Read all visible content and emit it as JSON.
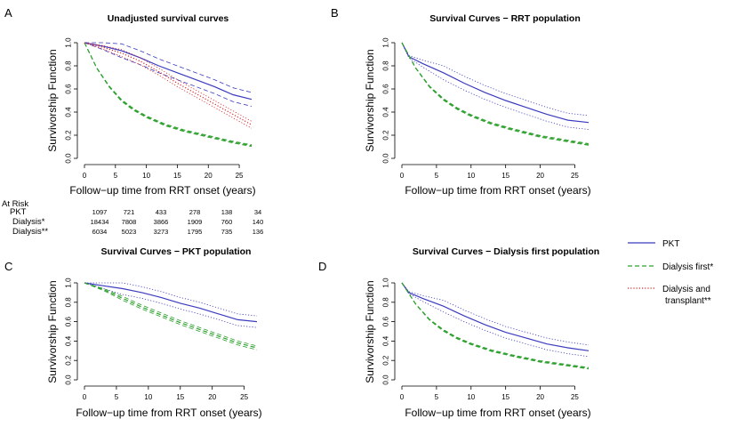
{
  "legend": {
    "items": [
      {
        "label": "PKT",
        "color": "#3b3bbf",
        "dash": "solid"
      },
      {
        "label": "Dialysis first*",
        "color": "#2ca02c",
        "dash": "dashed"
      },
      {
        "label": "Dialysis and",
        "label2": "transplant**",
        "color": "#d62728",
        "dash": "dotted"
      }
    ]
  },
  "at_risk": {
    "header": "At Risk",
    "rows": [
      {
        "label": "PKT",
        "values": [
          "1097",
          "721",
          "433",
          "278",
          "138",
          "34"
        ]
      },
      {
        "label": "Dialysis*",
        "values": [
          "18434",
          "7808",
          "3866",
          "1909",
          "760",
          "140"
        ]
      },
      {
        "label": "Dialysis**",
        "values": [
          "6034",
          "5023",
          "3273",
          "1795",
          "735",
          "136"
        ]
      }
    ]
  },
  "chart_data": [
    {
      "panel": "A",
      "type": "line",
      "title": "Unadjusted survival curves",
      "xlabel": "Follow−up time from RRT onset (years)",
      "ylabel": "Survivorship Function",
      "xlim": [
        0,
        27
      ],
      "ylim": [
        0,
        1
      ],
      "xticks": [
        "0",
        "5",
        "10",
        "15",
        "20",
        "25"
      ],
      "yticks": [
        "0.0",
        "0.2",
        "0.4",
        "0.6",
        "0.8",
        "1.0"
      ],
      "series": [
        {
          "name": "PKT",
          "color": "#3b3bbf",
          "ci_dash": "dashed",
          "ci": 0.06,
          "x": [
            0,
            3,
            6,
            9,
            12,
            15,
            18,
            21,
            24,
            27
          ],
          "y": [
            1.0,
            0.97,
            0.93,
            0.87,
            0.8,
            0.74,
            0.68,
            0.62,
            0.55,
            0.51
          ]
        },
        {
          "name": "Dialysis first*",
          "color": "#2ca02c",
          "ci_dash": "dashed",
          "ci": 0.008,
          "x": [
            0,
            2,
            4,
            6,
            8,
            10,
            13,
            16,
            20,
            24,
            27
          ],
          "y": [
            1.0,
            0.78,
            0.62,
            0.5,
            0.42,
            0.36,
            0.29,
            0.24,
            0.19,
            0.14,
            0.11
          ]
        },
        {
          "name": "Dialysis and transplant**",
          "color": "#d62728",
          "ci_dash": "dotted",
          "ci": 0.03,
          "x": [
            0,
            3,
            6,
            9,
            12,
            15,
            18,
            21,
            24,
            27
          ],
          "y": [
            1.0,
            0.96,
            0.91,
            0.84,
            0.75,
            0.65,
            0.56,
            0.47,
            0.38,
            0.29
          ]
        }
      ]
    },
    {
      "panel": "B",
      "type": "line",
      "title": "Survival Curves − RRT population",
      "xlabel": "Follow−up time from RRT onset (years)",
      "ylabel": "Survivorship Function",
      "xlim": [
        0,
        27
      ],
      "ylim": [
        0,
        1
      ],
      "xticks": [
        "0",
        "5",
        "10",
        "15",
        "20",
        "25"
      ],
      "yticks": [
        "0.0",
        "0.2",
        "0.4",
        "0.6",
        "0.8",
        "1.0"
      ],
      "series": [
        {
          "name": "PKT",
          "color": "#3b3bbf",
          "ci_dash": "dotted",
          "ci": 0.06,
          "x": [
            0,
            1,
            3,
            6,
            9,
            12,
            15,
            18,
            21,
            24,
            27
          ],
          "y": [
            1.0,
            0.88,
            0.82,
            0.74,
            0.65,
            0.57,
            0.5,
            0.44,
            0.38,
            0.33,
            0.31
          ]
        },
        {
          "name": "Dialysis first*",
          "color": "#2ca02c",
          "ci_dash": "dashed",
          "ci": 0.008,
          "x": [
            0,
            2,
            4,
            6,
            8,
            10,
            13,
            16,
            20,
            24,
            27
          ],
          "y": [
            1.0,
            0.78,
            0.62,
            0.51,
            0.43,
            0.37,
            0.3,
            0.25,
            0.19,
            0.15,
            0.12
          ]
        }
      ]
    },
    {
      "panel": "C",
      "type": "line",
      "title": "Survival Curves − PKT population",
      "xlabel": "Follow−up time from RRT onset (years)",
      "ylabel": "Survivorship Function",
      "xlim": [
        0,
        27
      ],
      "ylim": [
        0,
        1
      ],
      "xticks": [
        "0",
        "5",
        "10",
        "15",
        "20",
        "25"
      ],
      "yticks": [
        "0.0",
        "0.2",
        "0.4",
        "0.6",
        "0.8",
        "1.0"
      ],
      "series": [
        {
          "name": "PKT",
          "color": "#3b3bbf",
          "ci_dash": "dotted",
          "ci": 0.06,
          "x": [
            0,
            3,
            6,
            9,
            12,
            15,
            18,
            21,
            24,
            27
          ],
          "y": [
            1.0,
            0.97,
            0.94,
            0.9,
            0.85,
            0.79,
            0.74,
            0.68,
            0.62,
            0.6
          ]
        },
        {
          "name": "Dialysis first*",
          "color": "#2ca02c",
          "ci_dash": "dashed",
          "ci": 0.02,
          "x": [
            0,
            3,
            6,
            9,
            12,
            15,
            18,
            21,
            24,
            27
          ],
          "y": [
            1.0,
            0.93,
            0.84,
            0.75,
            0.67,
            0.59,
            0.52,
            0.45,
            0.38,
            0.33
          ]
        }
      ]
    },
    {
      "panel": "D",
      "type": "line",
      "title": "Survival Curves − Dialysis first population",
      "xlabel": "Follow−up time from RRT onset (years)",
      "ylabel": "Survivorship Function",
      "xlim": [
        0,
        27
      ],
      "ylim": [
        0,
        1
      ],
      "xticks": [
        "0",
        "5",
        "10",
        "15",
        "20",
        "25"
      ],
      "yticks": [
        "0.0",
        "0.2",
        "0.4",
        "0.6",
        "0.8",
        "1.0"
      ],
      "series": [
        {
          "name": "PKT",
          "color": "#3b3bbf",
          "ci_dash": "dotted",
          "ci": 0.06,
          "x": [
            0,
            1,
            3,
            6,
            9,
            12,
            15,
            18,
            21,
            24,
            27
          ],
          "y": [
            1.0,
            0.9,
            0.84,
            0.76,
            0.66,
            0.57,
            0.49,
            0.43,
            0.37,
            0.33,
            0.3
          ]
        },
        {
          "name": "Dialysis first*",
          "color": "#2ca02c",
          "ci_dash": "dashed",
          "ci": 0.008,
          "x": [
            0,
            2,
            4,
            6,
            8,
            10,
            13,
            16,
            20,
            24,
            27
          ],
          "y": [
            1.0,
            0.78,
            0.62,
            0.51,
            0.43,
            0.37,
            0.3,
            0.25,
            0.19,
            0.15,
            0.12
          ]
        }
      ]
    }
  ]
}
